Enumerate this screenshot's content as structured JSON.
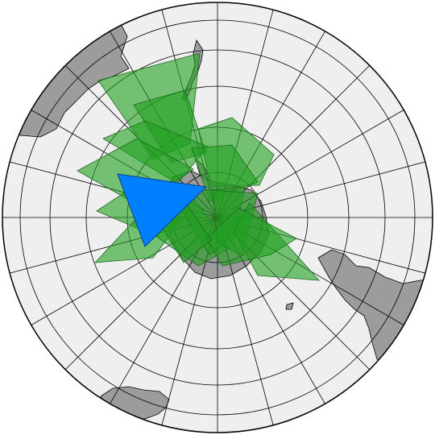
{
  "map": {
    "projection": "polar-azimuthal-south",
    "colors": {
      "ocean": "#efefef",
      "land": "#9c9c9c",
      "land_stroke": "#000000",
      "graticule": "#000000",
      "footprint_fill": "#1fa01f",
      "footprint_stroke": "#1c6b1c",
      "highlight_fill": "#0080ff",
      "highlight_stroke": "#00418a"
    },
    "footprint_opacity": 0.6,
    "footprint_count": 14,
    "highlighted_footprint_count": 1
  }
}
